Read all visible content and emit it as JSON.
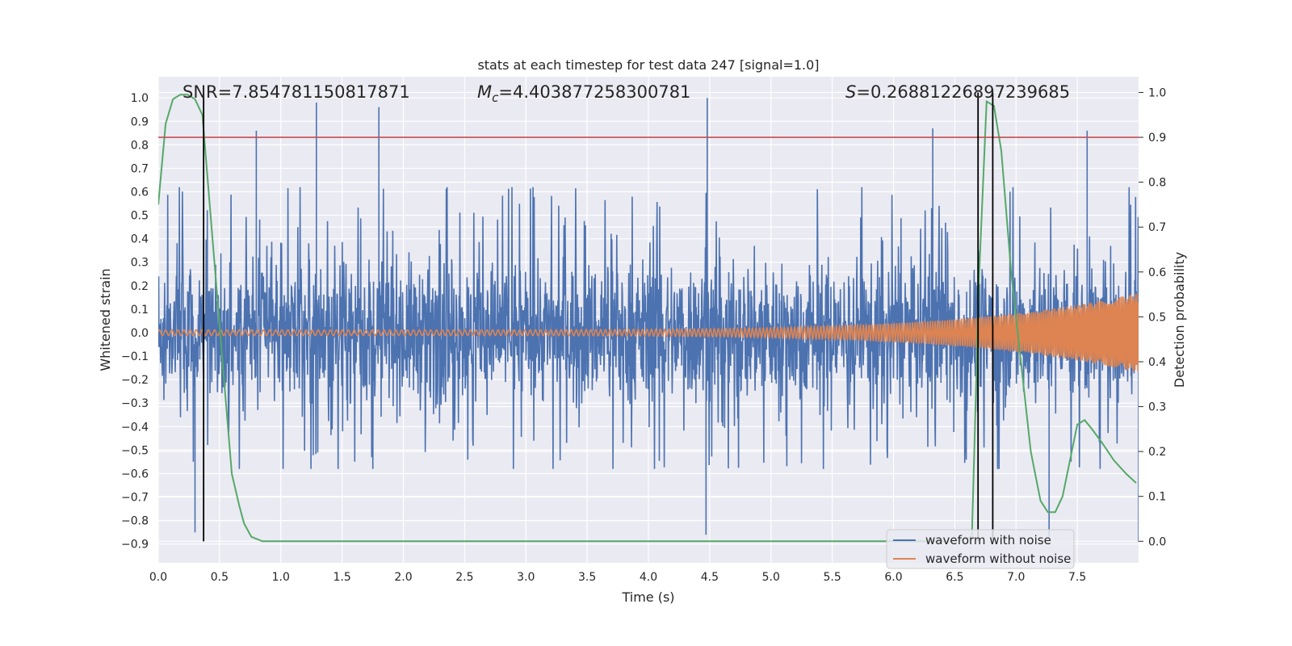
{
  "chart_data": {
    "type": "line",
    "title": "stats at each timestep for test data 247 [signal=1.0]",
    "xlabel": "Time (s)",
    "ylabel": "Whitened strain",
    "y2label": "Detection probability",
    "xlim": [
      0.0,
      8.0
    ],
    "ylim": [
      -0.98,
      1.09
    ],
    "y2lim": [
      -0.048,
      1.035
    ],
    "grid": true,
    "x_ticks": [
      "0.0",
      "0.5",
      "1.0",
      "1.5",
      "2.0",
      "2.5",
      "3.0",
      "3.5",
      "4.0",
      "4.5",
      "5.0",
      "5.5",
      "6.0",
      "6.5",
      "7.0",
      "7.5"
    ],
    "y_ticks": [
      "1.0",
      "0.9",
      "0.8",
      "0.7",
      "0.6",
      "0.5",
      "0.4",
      "0.3",
      "0.2",
      "0.1",
      "0.0",
      "−0.1",
      "−0.2",
      "−0.3",
      "−0.4",
      "−0.5",
      "−0.6",
      "−0.7",
      "−0.8",
      "−0.9"
    ],
    "y2_ticks": [
      "1.0",
      "0.9",
      "0.8",
      "0.7",
      "0.6",
      "0.5",
      "0.4",
      "0.3",
      "0.2",
      "0.1",
      "0.0"
    ],
    "annotations": {
      "snr": "SNR=7.854781150817871",
      "mc_symbol": "M",
      "mc_sub": "c",
      "mc_value": "=4.403877258300781",
      "s_symbol": "S",
      "s_value": "=0.26881226897239685"
    },
    "threshold_probability": 0.9,
    "vertical_lines_x": [
      0.37,
      6.69,
      6.81
    ],
    "series": [
      {
        "name": "waveform with noise",
        "color": "#4c72b0",
        "kind": "noise",
        "envelope_upper": 0.62,
        "envelope_lower": -0.58,
        "peaks": [
          {
            "x": 1.29,
            "y": 0.98
          },
          {
            "x": 1.8,
            "y": 0.96
          },
          {
            "x": 4.48,
            "y": 1.0
          },
          {
            "x": 6.32,
            "y": 0.87
          },
          {
            "x": 0.8,
            "y": 0.86
          },
          {
            "x": 7.58,
            "y": 0.86
          },
          {
            "x": 0.3,
            "y": -0.85
          },
          {
            "x": 4.47,
            "y": -0.86
          },
          {
            "x": 7.27,
            "y": -0.87
          },
          {
            "x": 8.0,
            "y": -0.89
          }
        ]
      },
      {
        "name": "waveform without noise",
        "color": "#dd8452",
        "kind": "chirp",
        "amplitude_start": 0.012,
        "amplitude_end": 0.17
      },
      {
        "name": "Detection probability",
        "color": "#55a868",
        "axis": "y2",
        "x": [
          0.0,
          0.06,
          0.12,
          0.18,
          0.24,
          0.3,
          0.36,
          0.42,
          0.48,
          0.54,
          0.6,
          0.66,
          0.7,
          0.76,
          0.85,
          1.0,
          6.5,
          6.64,
          6.7,
          6.76,
          6.82,
          6.88,
          6.96,
          7.04,
          7.12,
          7.2,
          7.26,
          7.32,
          7.38,
          7.44,
          7.5,
          7.56,
          7.62,
          7.7,
          7.8,
          7.9,
          7.98
        ],
        "y": [
          0.75,
          0.93,
          0.985,
          0.995,
          0.995,
          0.985,
          0.95,
          0.75,
          0.55,
          0.35,
          0.15,
          0.08,
          0.04,
          0.01,
          0.0,
          0.0,
          0.0,
          0.01,
          0.6,
          0.98,
          0.97,
          0.87,
          0.6,
          0.4,
          0.2,
          0.09,
          0.065,
          0.065,
          0.1,
          0.18,
          0.26,
          0.27,
          0.25,
          0.22,
          0.18,
          0.15,
          0.13
        ]
      }
    ],
    "threshold_color": "#c44e52",
    "vline_color": "#000000",
    "legend_placement": "lower-right",
    "legend_entries": [
      "waveform with noise",
      "waveform without noise"
    ]
  }
}
